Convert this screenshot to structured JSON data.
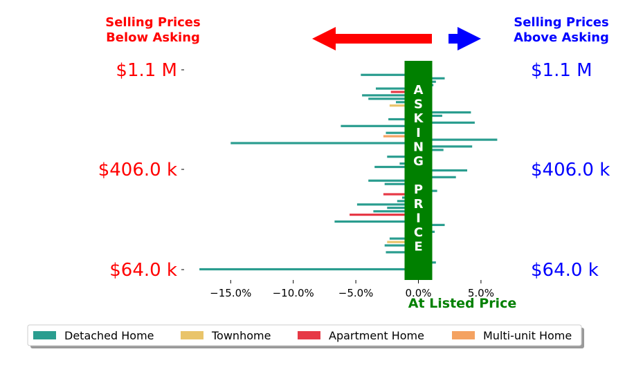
{
  "chart_data": {
    "type": "bar",
    "orientation": "horizontal",
    "header": {
      "left_lines": [
        "Selling Prices",
        "Below Asking"
      ],
      "right_lines": [
        "Selling Prices",
        "Above Asking"
      ],
      "left_color": "#ff0000",
      "right_color": "#0000ff"
    },
    "center_band": {
      "label_top": [
        "A",
        "S",
        "K",
        "I",
        "N",
        "G"
      ],
      "label_bottom": [
        "P",
        "R",
        "I",
        "C",
        "E"
      ],
      "color": "#008000"
    },
    "xlabel": "At Listed Price",
    "xlabel_color": "#008000",
    "xlim": [
      -18.5,
      8.6
    ],
    "xticks": [
      -15,
      -10,
      -5,
      0,
      5
    ],
    "xtick_labels": [
      "−15.0%",
      "−10.0%",
      "−5.0%",
      "0.0%",
      "5.0%"
    ],
    "y_labels_left": [
      "$1.1 M",
      "$406.0 k",
      "$64.0 k"
    ],
    "y_labels_right": [
      "$1.1 M",
      "$406.0 k",
      "$64.0 k"
    ],
    "y_label_positions": [
      0,
      0.5,
      1
    ],
    "legend": [
      {
        "name": "Detached Home",
        "color": "#2a9d8f"
      },
      {
        "name": "Townhome",
        "color": "#e9c46a"
      },
      {
        "name": "Apartment Home",
        "color": "#e63946"
      },
      {
        "name": "Multi-unit Home",
        "color": "#f4a261"
      }
    ],
    "series_values_ordered_top_to_bottom": [
      {
        "type": "Detached Home",
        "value": 1.1
      },
      {
        "type": "Detached Home",
        "value": 1.1
      },
      {
        "type": "Detached Home",
        "value": -4.6
      },
      {
        "type": "Detached Home",
        "value": 2.1
      },
      {
        "type": "Detached Home",
        "value": 1.4
      },
      {
        "type": "Detached Home",
        "value": 1.2
      },
      {
        "type": "Detached Home",
        "value": -3.4
      },
      {
        "type": "Apartment Home",
        "value": -2.2
      },
      {
        "type": "Detached Home",
        "value": -4.5
      },
      {
        "type": "Detached Home",
        "value": -4.0
      },
      {
        "type": "Detached Home",
        "value": -1.8
      },
      {
        "type": "Townhome",
        "value": -2.3
      },
      {
        "type": "Detached Home",
        "value": 1.0
      },
      {
        "type": "Detached Home",
        "value": 4.2
      },
      {
        "type": "Detached Home",
        "value": 1.9
      },
      {
        "type": "Detached Home",
        "value": -2.4
      },
      {
        "type": "Detached Home",
        "value": 4.5
      },
      {
        "type": "Detached Home",
        "value": -6.2
      },
      {
        "type": "Detached Home",
        "value": 1.1
      },
      {
        "type": "Detached Home",
        "value": -2.6
      },
      {
        "type": "Multi-unit Home",
        "value": -2.8
      },
      {
        "type": "Detached Home",
        "value": 6.3
      },
      {
        "type": "Detached Home",
        "value": -15.0
      },
      {
        "type": "Detached Home",
        "value": 4.3
      },
      {
        "type": "Detached Home",
        "value": 2.0
      },
      {
        "type": "Detached Home",
        "value": -1.1
      },
      {
        "type": "Detached Home",
        "value": -2.5
      },
      {
        "type": "Apartment Home",
        "value": 1.1
      },
      {
        "type": "Detached Home",
        "value": -1.5
      },
      {
        "type": "Detached Home",
        "value": -3.5
      },
      {
        "type": "Detached Home",
        "value": 3.9
      },
      {
        "type": "Detached Home",
        "value": 1.1
      },
      {
        "type": "Detached Home",
        "value": 3.0
      },
      {
        "type": "Detached Home",
        "value": -4.0
      },
      {
        "type": "Detached Home",
        "value": -2.7
      },
      {
        "type": "Apartment Home",
        "value": 1.0
      },
      {
        "type": "Detached Home",
        "value": 1.5
      },
      {
        "type": "Apartment Home",
        "value": -2.8
      },
      {
        "type": "Detached Home",
        "value": -1.3
      },
      {
        "type": "Detached Home",
        "value": -1.7
      },
      {
        "type": "Detached Home",
        "value": -4.9
      },
      {
        "type": "Detached Home",
        "value": -2.5
      },
      {
        "type": "Detached Home",
        "value": -3.6
      },
      {
        "type": "Apartment Home",
        "value": -5.5
      },
      {
        "type": "Detached Home",
        "value": 1.1
      },
      {
        "type": "Detached Home",
        "value": -6.7
      },
      {
        "type": "Detached Home",
        "value": 2.1
      },
      {
        "type": "Detached Home",
        "value": 1.1
      },
      {
        "type": "Detached Home",
        "value": 1.3
      },
      {
        "type": "Detached Home",
        "value": 1.0
      },
      {
        "type": "Detached Home",
        "value": -2.3
      },
      {
        "type": "Townhome",
        "value": -2.5
      },
      {
        "type": "Detached Home",
        "value": -2.7
      },
      {
        "type": "Detached Home",
        "value": 1.1
      },
      {
        "type": "Detached Home",
        "value": -2.6
      },
      {
        "type": "Detached Home",
        "value": 1.1
      },
      {
        "type": "Apartment Home",
        "value": 1.1
      },
      {
        "type": "Detached Home",
        "value": 1.4
      },
      {
        "type": "Detached Home",
        "value": 1.1
      },
      {
        "type": "Detached Home",
        "value": -17.5
      }
    ]
  }
}
